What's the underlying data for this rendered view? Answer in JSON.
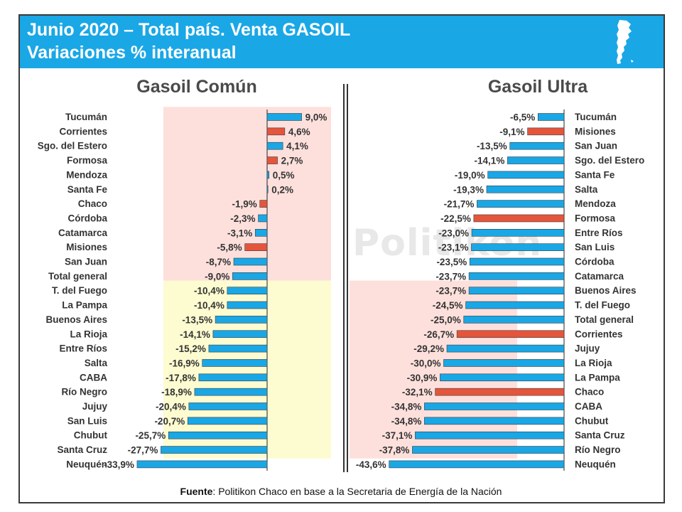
{
  "header": {
    "title_line1": "Junio 2020 – Total país. Venta GASOIL",
    "title_line2": "Variaciones % interanual",
    "background_color": "#1aa7e6",
    "icon": "argentina-map-icon"
  },
  "colors": {
    "bar_blue": "#1aa7e6",
    "bar_red": "#e4553c",
    "band_red": "#fde0dc",
    "band_yellow": "#fdfbd0"
  },
  "watermark": "Politikon",
  "source": {
    "label": "Fuente",
    "text": ": Politikon Chaco en base a la Secretaria de Energía de la Nación"
  },
  "chart_data": [
    {
      "type": "bar",
      "orientation": "horizontal",
      "title": "Gasoil Común",
      "categories": [
        "Tucumán",
        "Corrientes",
        "Sgo. del Estero",
        "Formosa",
        "Mendoza",
        "Santa Fe",
        "Chaco",
        "Córdoba",
        "Catamarca",
        "Misiones",
        "San Juan",
        "Total general",
        "T. del Fuego",
        "La Pampa",
        "Buenos Aires",
        "La Rioja",
        "Entre Ríos",
        "Salta",
        "CABA",
        "Río Negro",
        "Jujuy",
        "San Luis",
        "Chubut",
        "Santa Cruz",
        "Neuquén"
      ],
      "values": [
        9.0,
        4.6,
        4.1,
        2.7,
        0.5,
        0.2,
        -1.9,
        -2.3,
        -3.1,
        -5.8,
        -8.7,
        -9.0,
        -10.4,
        -10.4,
        -13.5,
        -14.1,
        -15.2,
        -16.9,
        -17.8,
        -18.9,
        -20.4,
        -20.7,
        -25.7,
        -27.7,
        -33.9
      ],
      "value_labels": [
        "9,0%",
        "4,6%",
        "4,1%",
        "2,7%",
        "0,5%",
        "0,2%",
        "-1,9%",
        "-2,3%",
        "-3,1%",
        "-5,8%",
        "-8,7%",
        "-9,0%",
        "-10,4%",
        "-10,4%",
        "-13,5%",
        "-14,1%",
        "-15,2%",
        "-16,9%",
        "-17,8%",
        "-18,9%",
        "-20,4%",
        "-20,7%",
        "-25,7%",
        "-27,7%",
        "-33,9%"
      ],
      "highlighted": [
        "Corrientes",
        "Formosa",
        "Chaco",
        "Misiones"
      ],
      "xlim": [
        -36,
        11
      ],
      "grid": false,
      "bands": [
        {
          "color": "red",
          "from_category": "Tucumán",
          "to_category": "Total general"
        },
        {
          "color": "yellow",
          "from_category": "T. del Fuego",
          "to_category": "Santa Cruz"
        }
      ]
    },
    {
      "type": "bar",
      "orientation": "horizontal",
      "title": "Gasoil Ultra",
      "categories": [
        "Tucumán",
        "Misiones",
        "San Juan",
        "Sgo. del Estero",
        "Santa Fe",
        "Salta",
        "Mendoza",
        "Formosa",
        "Entre Ríos",
        "San Luis",
        "Córdoba",
        "Catamarca",
        "Buenos Aires",
        "T. del Fuego",
        "Total general",
        "Corrientes",
        "Jujuy",
        "La Rioja",
        "La Pampa",
        "Chaco",
        "CABA",
        "Chubut",
        "Santa Cruz",
        "Río Negro",
        "Neuquén"
      ],
      "values": [
        -6.5,
        -9.1,
        -13.5,
        -14.1,
        -19.0,
        -19.3,
        -21.7,
        -22.5,
        -23.0,
        -23.1,
        -23.5,
        -23.7,
        -23.7,
        -24.5,
        -25.0,
        -26.7,
        -29.2,
        -30.0,
        -30.9,
        -32.1,
        -34.8,
        -34.8,
        -37.1,
        -37.8,
        -43.6
      ],
      "value_labels": [
        "-6,5%",
        "-9,1%",
        "-13,5%",
        "-14,1%",
        "-19,0%",
        "-19,3%",
        "-21,7%",
        "-22,5%",
        "-23,0%",
        "-23,1%",
        "-23,5%",
        "-23,7%",
        "-23,7%",
        "-24,5%",
        "-25,0%",
        "-26,7%",
        "-29,2%",
        "-30,0%",
        "-30,9%",
        "-32,1%",
        "-34,8%",
        "-34,8%",
        "-37,1%",
        "-37,8%",
        "-43,6%"
      ],
      "highlighted": [
        "Misiones",
        "Formosa",
        "Corrientes",
        "Chaco"
      ],
      "xlim": [
        -46,
        0
      ],
      "grid": false,
      "bands": [
        {
          "color": "red",
          "from_category": "Buenos Aires",
          "to_category": "Río Negro"
        }
      ]
    }
  ]
}
